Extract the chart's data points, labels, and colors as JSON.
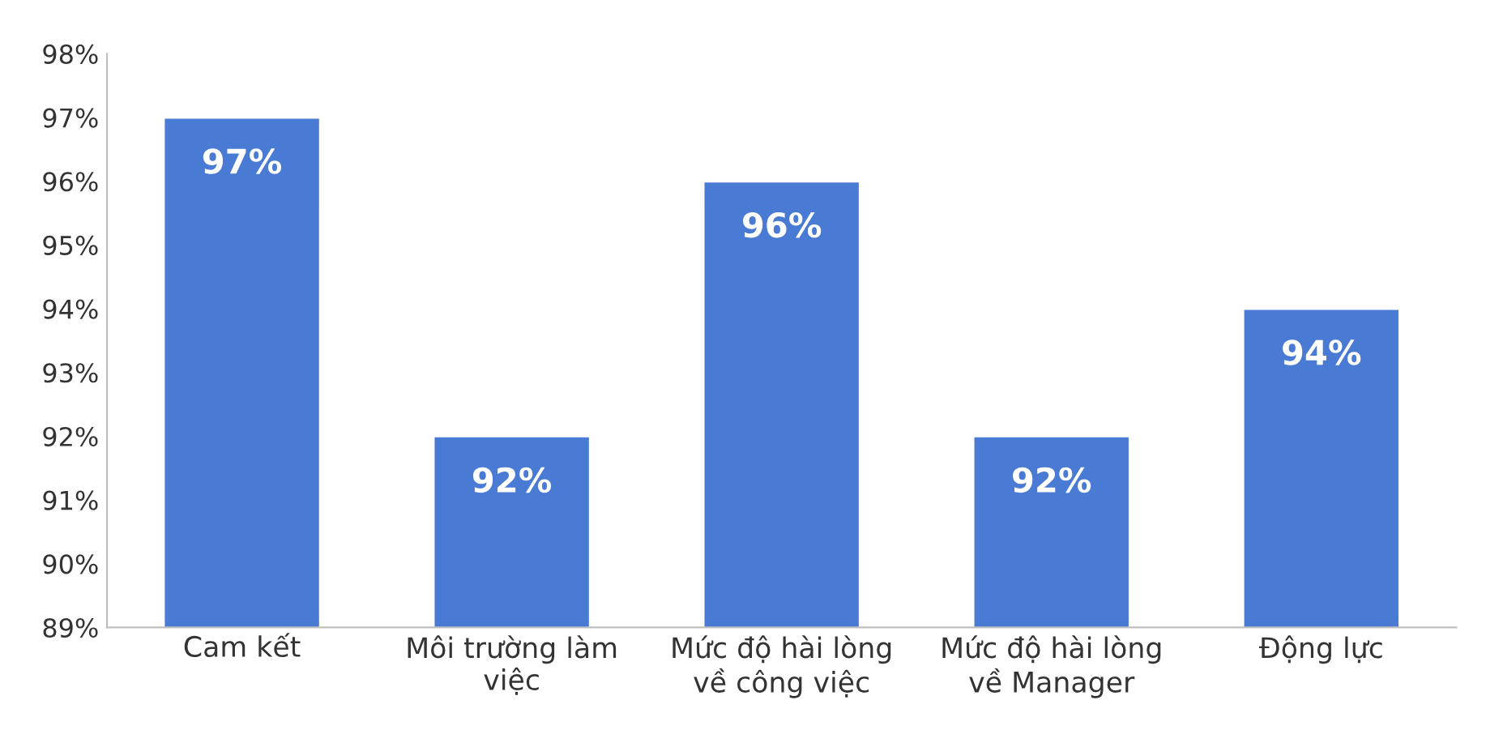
{
  "chart_data": {
    "type": "bar",
    "categories": [
      "Cam kết",
      "Môi trường làm\nviệc",
      "Mức độ hài lòng\nvề công việc",
      "Mức độ hài lòng\nvề Manager",
      "Động lực"
    ],
    "values": [
      97,
      92,
      96,
      92,
      94
    ],
    "value_labels": [
      "97%",
      "92%",
      "96%",
      "92%",
      "94%"
    ],
    "color": "#4a7bd4",
    "ylim": [
      89,
      98
    ],
    "yticks": [
      {
        "value": 89,
        "label": "89%"
      },
      {
        "value": 90,
        "label": "90%"
      },
      {
        "value": 91,
        "label": "91%"
      },
      {
        "value": 92,
        "label": "92%"
      },
      {
        "value": 93,
        "label": "93%"
      },
      {
        "value": 94,
        "label": "94%"
      },
      {
        "value": 95,
        "label": "95%"
      },
      {
        "value": 96,
        "label": "96%"
      },
      {
        "value": 97,
        "label": "97%"
      },
      {
        "value": 98,
        "label": "98%"
      }
    ],
    "grid": false,
    "legend": false
  }
}
